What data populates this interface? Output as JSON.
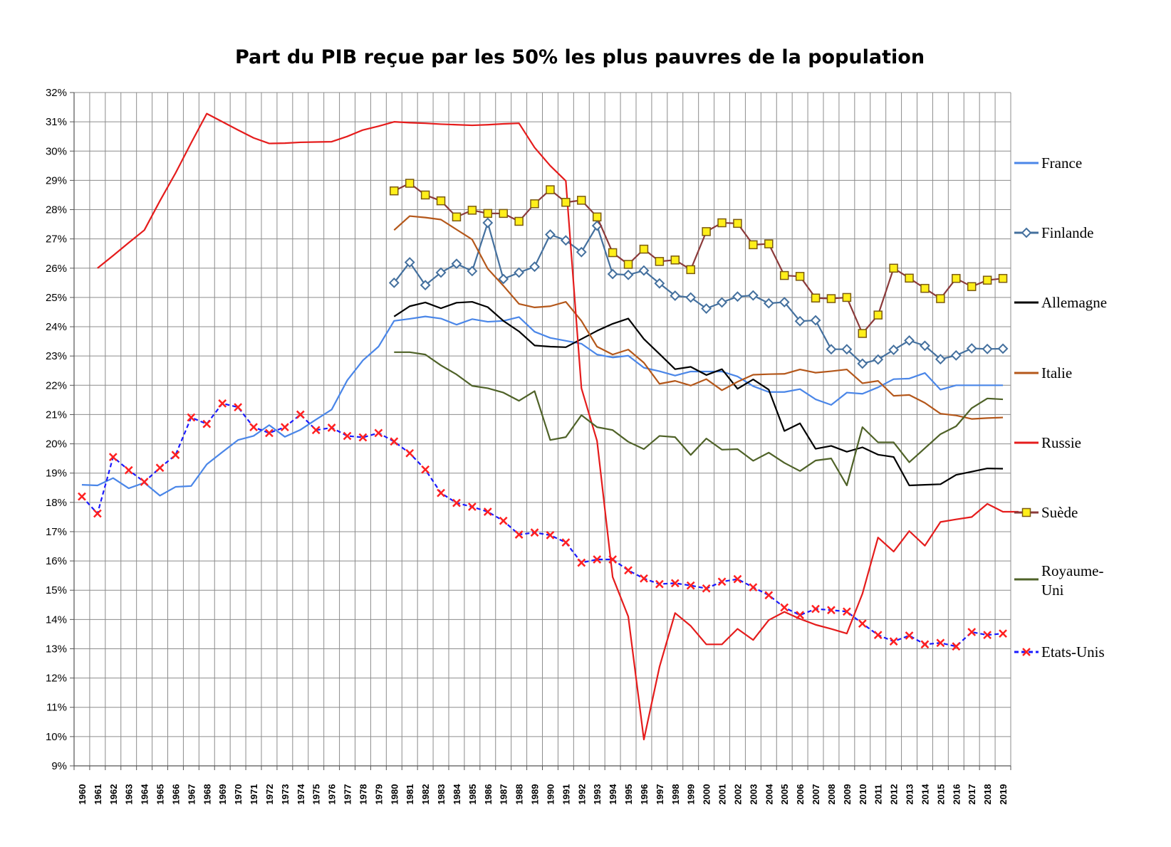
{
  "chart_data": {
    "type": "line",
    "title": "Part du PIB reçue par les 50% les plus pauvres de la population",
    "xlabel": "",
    "ylabel": "",
    "x_categories": [
      "1960",
      "1961",
      "1962",
      "1963",
      "1964",
      "1965",
      "1966",
      "1967",
      "1968",
      "1969",
      "1970",
      "1971",
      "1972",
      "1973",
      "1974",
      "1975",
      "1976",
      "1977",
      "1978",
      "1979",
      "1980",
      "1981",
      "1982",
      "1983",
      "1984",
      "1985",
      "1986",
      "1987",
      "1988",
      "1989",
      "1990",
      "1991",
      "1992",
      "1993",
      "1994",
      "1995",
      "1996",
      "1997",
      "1998",
      "1999",
      "2000",
      "2001",
      "2002",
      "2003",
      "2004",
      "2005",
      "2006",
      "2007",
      "2008",
      "2009",
      "2010",
      "2011",
      "2012",
      "2013",
      "2014",
      "2015",
      "2016",
      "2017",
      "2018",
      "2019"
    ],
    "ylim": [
      9,
      32
    ],
    "y_tick_labels": [
      "9%",
      "10%",
      "11%",
      "12%",
      "13%",
      "14%",
      "15%",
      "16%",
      "17%",
      "18%",
      "19%",
      "20%",
      "21%",
      "22%",
      "23%",
      "24%",
      "25%",
      "26%",
      "27%",
      "28%",
      "29%",
      "30%",
      "31%",
      "32%"
    ],
    "y_tick_values": [
      9,
      10,
      11,
      12,
      13,
      14,
      15,
      16,
      17,
      18,
      19,
      20,
      21,
      22,
      23,
      24,
      25,
      26,
      27,
      28,
      29,
      30,
      31,
      32
    ],
    "grid": true,
    "legend_position": "right",
    "series": [
      {
        "name": "France",
        "color": "#4a86e8",
        "marker": "none",
        "dashed": false,
        "start_year": 1960,
        "values": [
          18.6,
          18.58,
          18.83,
          18.48,
          18.67,
          18.23,
          18.53,
          18.56,
          19.3,
          19.72,
          20.13,
          20.27,
          20.64,
          20.24,
          20.48,
          20.83,
          21.17,
          22.17,
          22.85,
          23.32,
          24.2,
          24.27,
          24.35,
          24.28,
          24.07,
          24.26,
          24.17,
          24.2,
          24.33,
          23.83,
          23.62,
          23.52,
          23.42,
          23.05,
          22.95,
          23.01,
          22.6,
          22.48,
          22.33,
          22.47,
          22.47,
          22.47,
          22.3,
          21.97,
          21.77,
          21.77,
          21.87,
          21.52,
          21.33,
          21.75,
          21.71,
          21.93,
          22.21,
          22.23,
          22.42,
          21.85,
          22.0,
          22.0,
          22.0,
          22.0
        ]
      },
      {
        "name": "Finlande",
        "color": "#44709e",
        "marker": "diamond",
        "dashed": false,
        "start_year": 1980,
        "values": [
          25.5,
          26.2,
          25.42,
          25.85,
          26.15,
          25.9,
          27.55,
          25.63,
          25.85,
          26.05,
          27.15,
          26.95,
          26.55,
          27.45,
          25.8,
          25.77,
          25.92,
          25.48,
          25.06,
          25.0,
          24.62,
          24.83,
          25.03,
          25.07,
          24.8,
          24.84,
          24.19,
          24.22,
          23.23,
          23.23,
          22.74,
          22.88,
          23.21,
          23.53,
          23.35,
          22.89,
          23.02,
          23.26,
          23.24,
          23.25
        ]
      },
      {
        "name": "Allemagne",
        "color": "#000000",
        "marker": "none",
        "dashed": false,
        "start_year": 1980,
        "values": [
          24.35,
          24.7,
          24.83,
          24.63,
          24.82,
          24.85,
          24.67,
          24.2,
          23.84,
          23.36,
          23.32,
          23.3,
          23.58,
          23.86,
          24.1,
          24.28,
          23.58,
          23.07,
          22.55,
          22.63,
          22.35,
          22.55,
          21.88,
          22.2,
          21.85,
          20.44,
          20.7,
          19.83,
          19.93,
          19.73,
          19.88,
          19.63,
          19.55,
          18.58,
          18.6,
          18.62,
          18.94,
          19.05,
          19.16,
          19.15
        ]
      },
      {
        "name": "Italie",
        "color": "#b4571a",
        "marker": "none",
        "dashed": false,
        "start_year": 1980,
        "values": [
          27.3,
          27.78,
          27.73,
          27.66,
          27.32,
          26.98,
          25.98,
          25.4,
          24.78,
          24.66,
          24.7,
          24.85,
          24.2,
          23.32,
          23.05,
          23.22,
          22.77,
          22.05,
          22.15,
          21.99,
          22.21,
          21.83,
          22.12,
          22.36,
          22.38,
          22.39,
          22.54,
          22.43,
          22.48,
          22.54,
          22.07,
          22.15,
          21.64,
          21.67,
          21.4,
          21.03,
          20.97,
          20.85,
          20.88,
          20.9
        ]
      },
      {
        "name": "Russie",
        "color": "#e51c1c",
        "marker": "none",
        "dashed": false,
        "start_year": 1961,
        "values": [
          26.0,
          26.43,
          26.87,
          27.3,
          28.3,
          29.25,
          30.28,
          31.28,
          31.0,
          30.72,
          30.45,
          30.26,
          30.27,
          30.3,
          30.31,
          30.32,
          30.5,
          30.72,
          30.85,
          31.0,
          30.97,
          30.95,
          30.92,
          30.9,
          30.88,
          30.9,
          30.93,
          30.95,
          30.12,
          29.5,
          28.98,
          21.9,
          20.1,
          15.45,
          14.1,
          9.9,
          12.38,
          14.22,
          13.78,
          13.15,
          13.15,
          13.68,
          13.3,
          13.98,
          14.26,
          14.02,
          13.82,
          13.68,
          13.52,
          14.88,
          16.8,
          16.32,
          17.02,
          16.52,
          17.33,
          17.42,
          17.5,
          17.95,
          17.68,
          17.68
        ]
      },
      {
        "name": "Suède",
        "color": "#8b3a3a",
        "marker": "square",
        "dashed": false,
        "start_year": 1980,
        "values": [
          28.64,
          28.9,
          28.5,
          28.3,
          27.75,
          27.98,
          27.87,
          27.87,
          27.6,
          28.2,
          28.68,
          28.25,
          28.32,
          27.75,
          26.53,
          26.13,
          26.65,
          26.23,
          26.28,
          25.95,
          27.25,
          27.55,
          27.53,
          26.8,
          26.83,
          25.75,
          25.72,
          24.98,
          24.96,
          25.0,
          23.77,
          24.4,
          26.0,
          25.66,
          25.31,
          24.96,
          25.65,
          25.37,
          25.59,
          25.65
        ]
      },
      {
        "name": "Royaume-Uni",
        "label_lines": [
          "Royaume-",
          "Uni"
        ],
        "color": "#4f6228",
        "marker": "none",
        "dashed": false,
        "start_year": 1980,
        "values": [
          23.13,
          23.13,
          23.05,
          22.68,
          22.37,
          21.98,
          21.9,
          21.75,
          21.47,
          21.8,
          20.13,
          20.23,
          20.98,
          20.57,
          20.47,
          20.07,
          19.82,
          20.27,
          20.23,
          19.62,
          20.18,
          19.8,
          19.82,
          19.42,
          19.7,
          19.35,
          19.07,
          19.43,
          19.5,
          18.58,
          20.57,
          20.05,
          20.05,
          19.37,
          19.85,
          20.33,
          20.6,
          21.22,
          21.55,
          21.52
        ]
      },
      {
        "name": "Etats-Unis",
        "color": "#1a1aff",
        "marker": "x",
        "marker_color": "#ff2020",
        "dashed": true,
        "start_year": 1960,
        "values": [
          18.2,
          17.62,
          19.55,
          19.1,
          18.7,
          19.18,
          19.62,
          20.9,
          20.68,
          21.38,
          21.25,
          20.57,
          20.37,
          20.57,
          21.0,
          20.47,
          20.55,
          20.27,
          20.22,
          20.37,
          20.08,
          19.68,
          19.12,
          18.32,
          17.98,
          17.85,
          17.68,
          17.37,
          16.9,
          16.97,
          16.88,
          16.63,
          15.94,
          16.05,
          16.05,
          15.68,
          15.4,
          15.21,
          15.24,
          15.16,
          15.06,
          15.29,
          15.38,
          15.1,
          14.83,
          14.41,
          14.15,
          14.36,
          14.32,
          14.27,
          13.86,
          13.47,
          13.25,
          13.45,
          13.15,
          13.2,
          13.08,
          13.57,
          13.47,
          13.52
        ]
      }
    ]
  }
}
